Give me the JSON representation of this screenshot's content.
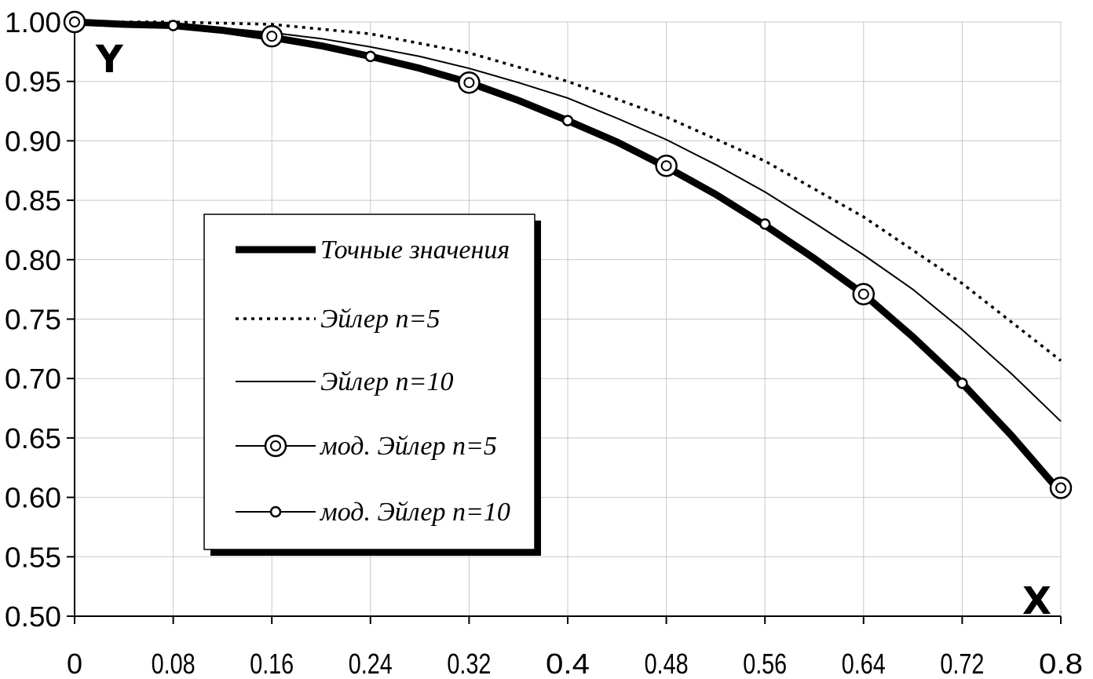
{
  "chart_data": {
    "type": "line",
    "title": "",
    "xlabel": "X",
    "ylabel": "Y",
    "xlim": [
      0,
      0.8
    ],
    "ylim": [
      0.5,
      1.0
    ],
    "x_ticks": [
      "0",
      "0.08",
      "0.16",
      "0.24",
      "0.32",
      "0.4",
      "0.48",
      "0.56",
      "0.64",
      "0.72",
      "0.8"
    ],
    "y_ticks": [
      "0.50",
      "0.55",
      "0.60",
      "0.65",
      "0.70",
      "0.75",
      "0.80",
      "0.85",
      "0.90",
      "0.95",
      "1.00"
    ],
    "grid": true,
    "legend_position": "center-left",
    "series": [
      {
        "name": "Точные значения",
        "style": "thick",
        "color": "#000000",
        "x": [
          0,
          0.04,
          0.08,
          0.12,
          0.16,
          0.2,
          0.24,
          0.28,
          0.32,
          0.36,
          0.4,
          0.44,
          0.48,
          0.52,
          0.56,
          0.6,
          0.64,
          0.68,
          0.72,
          0.76,
          0.8
        ],
        "y": [
          1.0,
          0.998,
          0.997,
          0.993,
          0.987,
          0.98,
          0.971,
          0.961,
          0.949,
          0.934,
          0.917,
          0.899,
          0.878,
          0.855,
          0.829,
          0.801,
          0.771,
          0.735,
          0.696,
          0.652,
          0.604
        ]
      },
      {
        "name": "Эйлер n=5",
        "style": "dotted",
        "color": "#000000",
        "x": [
          0,
          0.08,
          0.16,
          0.24,
          0.32,
          0.4,
          0.48,
          0.56,
          0.64,
          0.72,
          0.8
        ],
        "y": [
          1.0,
          1.0,
          0.998,
          0.99,
          0.974,
          0.95,
          0.92,
          0.883,
          0.836,
          0.78,
          0.715
        ]
      },
      {
        "name": "Эйлер n=10",
        "style": "thin",
        "color": "#000000",
        "x": [
          0,
          0.04,
          0.08,
          0.12,
          0.16,
          0.2,
          0.24,
          0.28,
          0.32,
          0.36,
          0.4,
          0.44,
          0.48,
          0.52,
          0.56,
          0.6,
          0.64,
          0.68,
          0.72,
          0.76,
          0.8
        ],
        "y": [
          1.0,
          0.999,
          0.998,
          0.995,
          0.991,
          0.986,
          0.979,
          0.971,
          0.961,
          0.949,
          0.936,
          0.919,
          0.901,
          0.88,
          0.857,
          0.831,
          0.804,
          0.775,
          0.741,
          0.704,
          0.664
        ]
      },
      {
        "name": "мод. Эйлер n=5",
        "style": "large-circle-markers",
        "color": "#000000",
        "x": [
          0,
          0.16,
          0.32,
          0.48,
          0.64,
          0.8
        ],
        "y": [
          1.0,
          0.988,
          0.949,
          0.879,
          0.771,
          0.608
        ]
      },
      {
        "name": "мод. Эйлер n=10",
        "style": "small-circle-markers",
        "color": "#000000",
        "x": [
          0,
          0.08,
          0.16,
          0.24,
          0.32,
          0.4,
          0.48,
          0.56,
          0.64,
          0.72,
          0.8
        ],
        "y": [
          1.0,
          0.997,
          0.988,
          0.971,
          0.949,
          0.917,
          0.879,
          0.83,
          0.771,
          0.696,
          0.604
        ]
      }
    ]
  }
}
